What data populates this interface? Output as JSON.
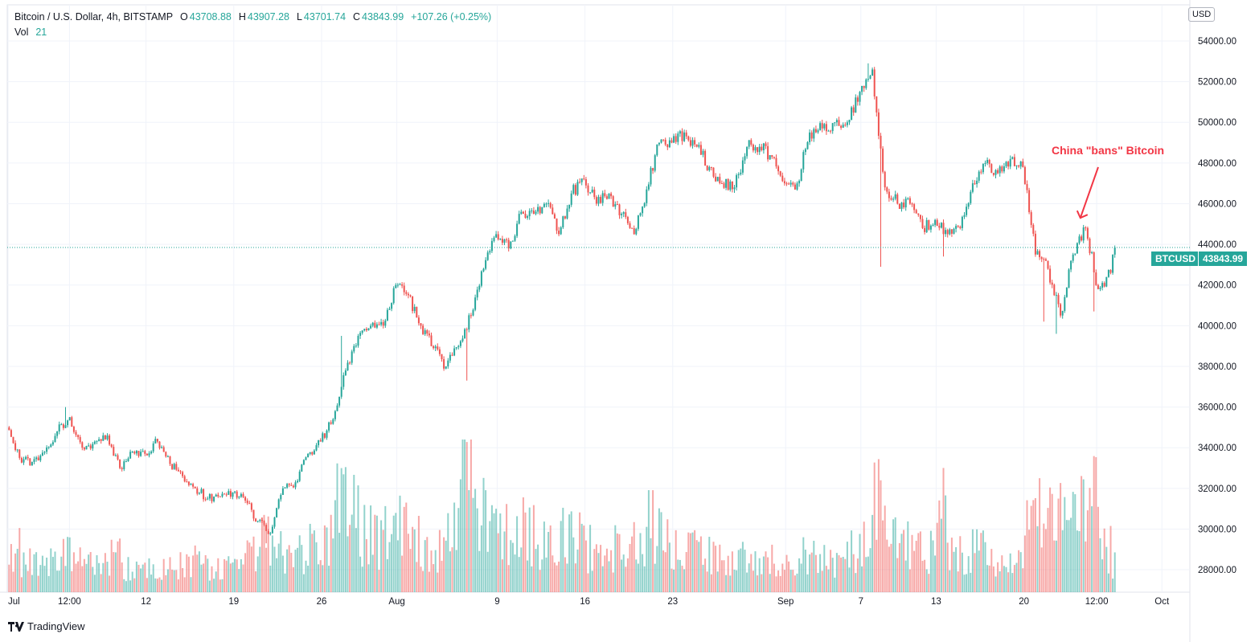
{
  "header": {
    "symbol": "Bitcoin / U.S. Dollar, 4h, BITSTAMP",
    "o_label": "O",
    "o": "43708.88",
    "h_label": "H",
    "h": "43907.28",
    "l_label": "L",
    "l": "43701.74",
    "c_label": "C",
    "c": "43843.99",
    "change": "+107.26 (+0.25%)",
    "vol_label": "Vol",
    "vol": "21"
  },
  "currency_button": "USD",
  "price_tag": {
    "symbol": "BTCUSD",
    "price": "43843.99"
  },
  "brand": "TradingView",
  "colors": {
    "up": "#26a69a",
    "down": "#ef5350",
    "annotation": "#f23645"
  },
  "chart_data": {
    "type": "candlestick",
    "interval": "4h",
    "annotation": {
      "text": "China \"bans\" Bitcoin",
      "day": 85.5,
      "price": 45300
    },
    "ylim": [
      27000,
      55000
    ],
    "y_ticks": [
      28000,
      30000,
      32000,
      34000,
      36000,
      38000,
      40000,
      42000,
      44000,
      46000,
      48000,
      50000,
      52000,
      54000
    ],
    "x_ticks": [
      {
        "label": "Jul",
        "day": 0
      },
      {
        "label": "12:00",
        "day": 4.9
      },
      {
        "label": "12",
        "day": 11
      },
      {
        "label": "19",
        "day": 18
      },
      {
        "label": "26",
        "day": 25
      },
      {
        "label": "Aug",
        "day": 31
      },
      {
        "label": "9",
        "day": 39
      },
      {
        "label": "16",
        "day": 46
      },
      {
        "label": "23",
        "day": 53
      },
      {
        "label": "Sep",
        "day": 62
      },
      {
        "label": "7",
        "day": 68
      },
      {
        "label": "13",
        "day": 74
      },
      {
        "label": "20",
        "day": 81
      },
      {
        "label": "12:00",
        "day": 86.8
      },
      {
        "label": "Oct",
        "day": 92
      }
    ],
    "first_open": 35000,
    "daily_close": [
      33500,
      33300,
      33800,
      34800,
      35500,
      34000,
      34300,
      34600,
      33000,
      33800,
      33700,
      34300,
      33200,
      32600,
      32000,
      31500,
      31600,
      31800,
      31400,
      30400,
      29800,
      32000,
      32300,
      33700,
      34300,
      35400,
      37800,
      39500,
      40000,
      40000,
      42000,
      41500,
      40000,
      38900,
      38000,
      39000,
      40500,
      42800,
      44500,
      43800,
      45600,
      45500,
      46000,
      44500,
      46500,
      47200,
      46000,
      46500,
      45500,
      44500,
      46700,
      49000,
      49000,
      49500,
      48800,
      47800,
      47000,
      46800,
      48800,
      48800,
      48300,
      47000,
      47000,
      49500,
      49700,
      50000,
      50000,
      51500,
      52600,
      46800,
      46000,
      46000,
      44800,
      45200,
      44500,
      44800,
      47000,
      48000,
      47500,
      48200,
      47800,
      43500,
      42800,
      40500,
      43500,
      44800,
      41800,
      42600,
      43843.99
    ],
    "wick_extremes": [
      {
        "day": 20,
        "low": 29300
      },
      {
        "day": 26,
        "high": 39500
      },
      {
        "day": 36,
        "low": 37300
      },
      {
        "day": 69,
        "low": 42900
      },
      {
        "day": 74,
        "low": 43400
      },
      {
        "day": 82,
        "low": 40200
      },
      {
        "day": 83,
        "low": 39600
      },
      {
        "day": 86,
        "low": 40700
      },
      {
        "day": 4,
        "high": 36000
      },
      {
        "day": 68,
        "high": 52900
      }
    ],
    "daily_volume_relative": [
      30,
      20,
      18,
      22,
      25,
      20,
      18,
      22,
      25,
      18,
      16,
      20,
      18,
      20,
      22,
      18,
      16,
      18,
      20,
      25,
      35,
      28,
      22,
      25,
      30,
      40,
      70,
      55,
      40,
      35,
      45,
      50,
      35,
      30,
      28,
      45,
      85,
      50,
      45,
      40,
      38,
      42,
      35,
      30,
      38,
      35,
      30,
      28,
      30,
      32,
      35,
      45,
      38,
      30,
      28,
      25,
      25,
      22,
      25,
      20,
      22,
      20,
      25,
      28,
      25,
      22,
      25,
      30,
      35,
      80,
      45,
      35,
      30,
      28,
      55,
      30,
      28,
      30,
      25,
      22,
      20,
      45,
      50,
      55,
      45,
      60,
      70,
      30,
      20
    ]
  }
}
